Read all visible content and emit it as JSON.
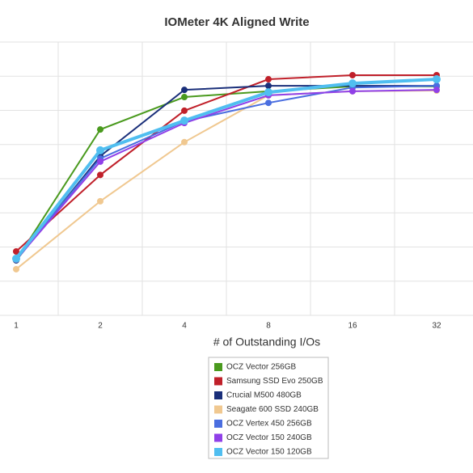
{
  "chart_data": {
    "type": "line",
    "title": "IOMeter 4K Aligned Write",
    "x_label": "# of Outstanding I/Os",
    "categories": [
      "1",
      "2",
      "4",
      "8",
      "16",
      "32"
    ],
    "ylim": [
      0,
      80
    ],
    "series": [
      {
        "name": "OCZ Vector 256GB",
        "color": "#4a9a1e",
        "values": [
          16.1,
          54.4,
          63.9,
          65.6,
          67,
          67
        ]
      },
      {
        "name": "Samsung SSD Evo 250GB",
        "color": "#c0202a",
        "values": [
          18.7,
          41.1,
          59.9,
          69.1,
          70.3,
          70.3
        ]
      },
      {
        "name": "Crucial M500 480GB",
        "color": "#1a2f7a",
        "values": [
          16.1,
          46.6,
          66,
          67.2,
          67.2,
          67.2
        ]
      },
      {
        "name": "Seagate 600 SSD 240GB",
        "color": "#f0c890",
        "values": [
          13.5,
          33.4,
          50.7,
          64.4,
          65.6,
          65.8
        ]
      },
      {
        "name": "OCZ Vertex 450 256GB",
        "color": "#4a6ee0",
        "values": [
          16.6,
          45.9,
          56.8,
          62.2,
          66.7,
          67.2
        ]
      },
      {
        "name": "OCZ Vector 150 240GB",
        "color": "#9040e8",
        "values": [
          16.3,
          45,
          56.3,
          64.4,
          65.6,
          66
        ]
      },
      {
        "name": "OCZ Vector 150 120GB",
        "color": "#50bef0",
        "values": [
          16.6,
          48.3,
          57,
          65.3,
          67.9,
          69.1
        ]
      }
    ]
  }
}
